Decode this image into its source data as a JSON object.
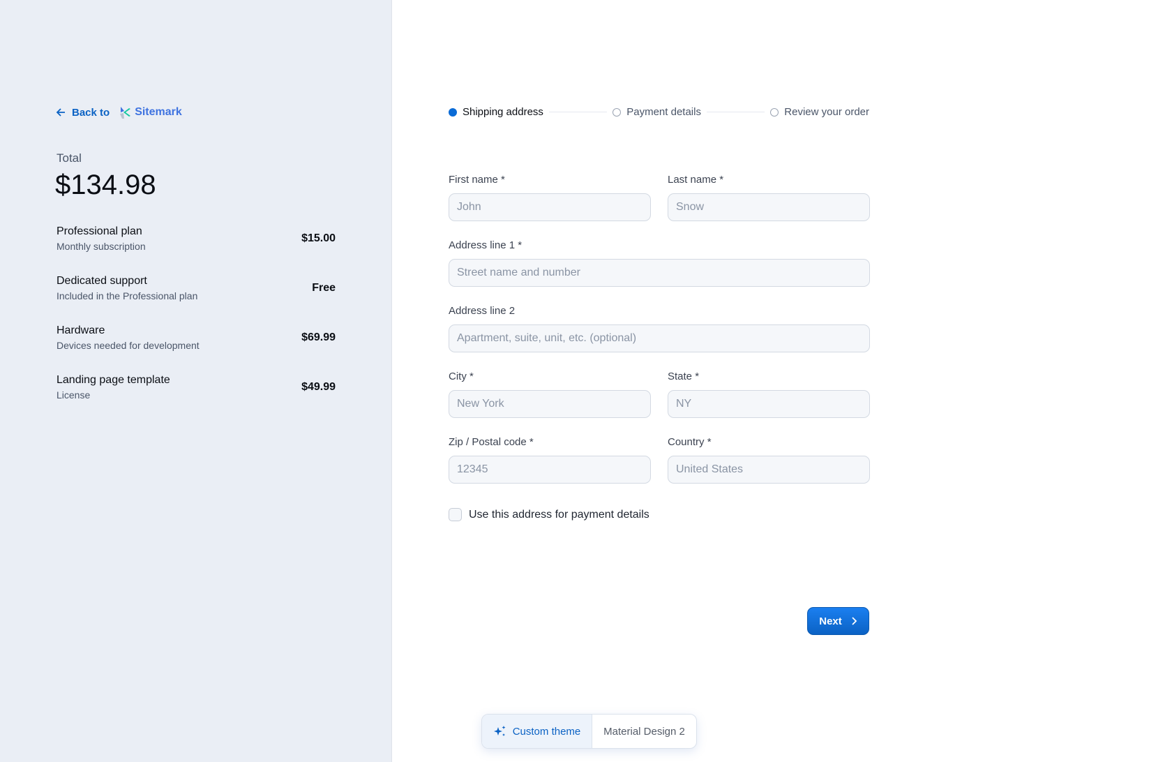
{
  "sidebar": {
    "back_label": "Back to",
    "brand": "Sitemark",
    "total_label": "Total",
    "total_value": "$134.98",
    "items": [
      {
        "name": "Professional plan",
        "desc": "Monthly subscription",
        "price": "$15.00"
      },
      {
        "name": "Dedicated support",
        "desc": "Included in the Professional plan",
        "price": "Free"
      },
      {
        "name": "Hardware",
        "desc": "Devices needed for development",
        "price": "$69.99"
      },
      {
        "name": "Landing page template",
        "desc": "License",
        "price": "$49.99"
      }
    ]
  },
  "header": {
    "theme_toggle_icon": "moon-icon"
  },
  "steps": [
    {
      "label": "Shipping address",
      "active": true
    },
    {
      "label": "Payment details",
      "active": false
    },
    {
      "label": "Review your order",
      "active": false
    }
  ],
  "form": {
    "first_name": {
      "label": "First name *",
      "placeholder": "John"
    },
    "last_name": {
      "label": "Last name *",
      "placeholder": "Snow"
    },
    "address1": {
      "label": "Address line 1 *",
      "placeholder": "Street name and number"
    },
    "address2": {
      "label": "Address line 2",
      "placeholder": "Apartment, suite, unit, etc. (optional)"
    },
    "city": {
      "label": "City *",
      "placeholder": "New York"
    },
    "state": {
      "label": "State *",
      "placeholder": "NY"
    },
    "zip": {
      "label": "Zip / Postal code *",
      "placeholder": "12345"
    },
    "country": {
      "label": "Country *",
      "placeholder": "United States"
    },
    "checkbox_label": "Use this address for payment details",
    "checkbox_checked": false,
    "next_label": "Next"
  },
  "theme_switch": {
    "custom": "Custom theme",
    "material": "Material Design 2",
    "selected": "Custom theme"
  },
  "colors": {
    "accent": "#0b6bd6",
    "sidebar_bg": "#eaeef5"
  }
}
